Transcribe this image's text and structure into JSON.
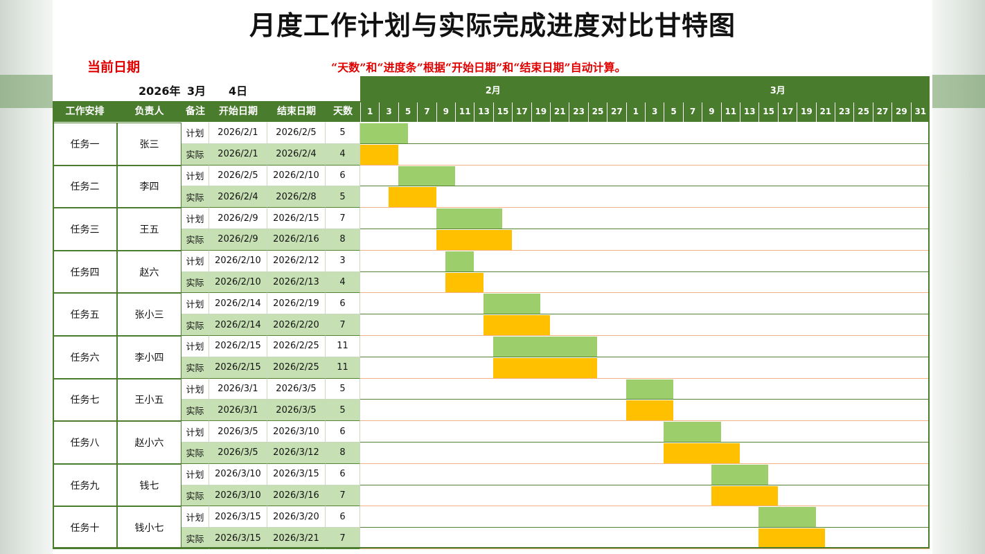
{
  "title": "月度工作计划与实际完成进度对比甘特图",
  "current_date_label": "当前日期",
  "note": "“天数”和“进度条”根据“开始日期”和“结束日期”自动计算。",
  "current_date": {
    "year": "2026年",
    "month": "3月",
    "day": "4日"
  },
  "headers": {
    "task": "工作安排",
    "owner": "负责人",
    "remark": "备注",
    "start": "开始日期",
    "end": "结束日期",
    "days": "天数"
  },
  "colors": {
    "header_green": "#4a7c2e",
    "plan_bar": "#9ccf6b",
    "actual_bar": "#ffc000",
    "actual_row_fill": "#c6e0b4",
    "plan_rule": "#548235",
    "actual_rule": "#f4b183"
  },
  "chart_data": {
    "type": "gantt",
    "title": "月度工作计划与实际完成进度对比甘特图",
    "months": [
      {
        "label": "2月",
        "days": [
          "1",
          "3",
          "5",
          "7",
          "9",
          "11",
          "13",
          "15",
          "17",
          "19",
          "21",
          "23",
          "25",
          "27"
        ]
      },
      {
        "label": "3月",
        "days": [
          "1",
          "3",
          "5",
          "7",
          "9",
          "11",
          "13",
          "15",
          "17",
          "19",
          "21",
          "23",
          "25",
          "27",
          "29",
          "31"
        ]
      }
    ],
    "series": [
      {
        "name": "计划",
        "color": "#9ccf6b"
      },
      {
        "name": "实际",
        "color": "#ffc000"
      }
    ],
    "tasks": [
      {
        "name": "任务一",
        "owner": "张三",
        "plan": {
          "label": "计划",
          "start": "2026/2/1",
          "end": "2026/2/5",
          "days": 5
        },
        "actual": {
          "label": "实际",
          "start": "2026/2/1",
          "end": "2026/2/4",
          "days": 4
        }
      },
      {
        "name": "任务二",
        "owner": "李四",
        "plan": {
          "label": "计划",
          "start": "2026/2/5",
          "end": "2026/2/10",
          "days": 6
        },
        "actual": {
          "label": "实际",
          "start": "2026/2/4",
          "end": "2026/2/8",
          "days": 5
        }
      },
      {
        "name": "任务三",
        "owner": "王五",
        "plan": {
          "label": "计划",
          "start": "2026/2/9",
          "end": "2026/2/15",
          "days": 7
        },
        "actual": {
          "label": "实际",
          "start": "2026/2/9",
          "end": "2026/2/16",
          "days": 8
        }
      },
      {
        "name": "任务四",
        "owner": "赵六",
        "plan": {
          "label": "计划",
          "start": "2026/2/10",
          "end": "2026/2/12",
          "days": 3
        },
        "actual": {
          "label": "实际",
          "start": "2026/2/10",
          "end": "2026/2/13",
          "days": 4
        }
      },
      {
        "name": "任务五",
        "owner": "张小三",
        "plan": {
          "label": "计划",
          "start": "2026/2/14",
          "end": "2026/2/19",
          "days": 6
        },
        "actual": {
          "label": "实际",
          "start": "2026/2/14",
          "end": "2026/2/20",
          "days": 7
        }
      },
      {
        "name": "任务六",
        "owner": "李小四",
        "plan": {
          "label": "计划",
          "start": "2026/2/15",
          "end": "2026/2/25",
          "days": 11
        },
        "actual": {
          "label": "实际",
          "start": "2026/2/15",
          "end": "2026/2/25",
          "days": 11
        }
      },
      {
        "name": "任务七",
        "owner": "王小五",
        "plan": {
          "label": "计划",
          "start": "2026/3/1",
          "end": "2026/3/5",
          "days": 5
        },
        "actual": {
          "label": "实际",
          "start": "2026/3/1",
          "end": "2026/3/5",
          "days": 5
        }
      },
      {
        "name": "任务八",
        "owner": "赵小六",
        "plan": {
          "label": "计划",
          "start": "2026/3/5",
          "end": "2026/3/10",
          "days": 6
        },
        "actual": {
          "label": "实际",
          "start": "2026/3/5",
          "end": "2026/3/12",
          "days": 8
        }
      },
      {
        "name": "任务九",
        "owner": "钱七",
        "plan": {
          "label": "计划",
          "start": "2026/3/10",
          "end": "2026/3/15",
          "days": 6
        },
        "actual": {
          "label": "实际",
          "start": "2026/3/10",
          "end": "2026/3/16",
          "days": 7
        }
      },
      {
        "name": "任务十",
        "owner": "钱小七",
        "plan": {
          "label": "计划",
          "start": "2026/3/15",
          "end": "2026/3/20",
          "days": 6
        },
        "actual": {
          "label": "实际",
          "start": "2026/3/15",
          "end": "2026/3/21",
          "days": 7
        }
      }
    ]
  }
}
